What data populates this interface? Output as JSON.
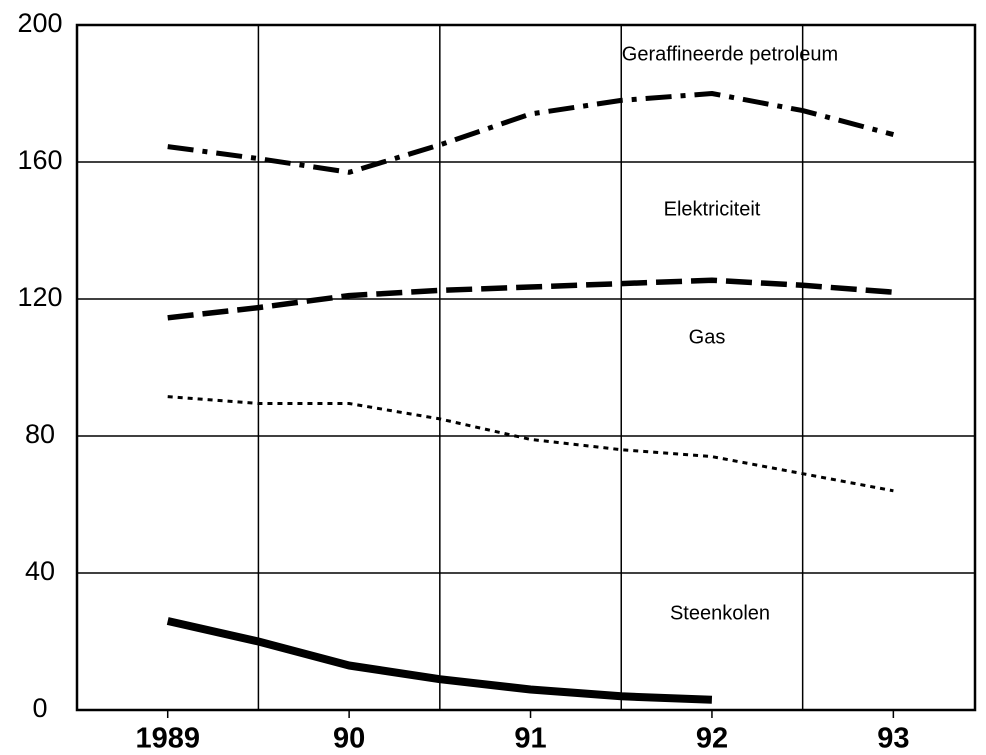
{
  "chart_data": {
    "type": "line",
    "x": [
      1989,
      1989.5,
      1990,
      1990.5,
      1991,
      1991.5,
      1992,
      1992.5,
      1993
    ],
    "xlim": [
      1988.5,
      1993.45
    ],
    "xticks": [
      {
        "value": 1989,
        "label": "1989"
      },
      {
        "value": 1990,
        "label": "90"
      },
      {
        "value": 1991,
        "label": "91"
      },
      {
        "value": 1992,
        "label": "92"
      },
      {
        "value": 1993,
        "label": "93"
      }
    ],
    "xgrid": [
      1989.5,
      1990.5,
      1991.5,
      1992.5
    ],
    "ylim": [
      0,
      200
    ],
    "yticks": [
      0,
      40,
      80,
      120,
      160,
      200
    ],
    "grid": true,
    "series": [
      {
        "name": "Geraffineerde petroleum",
        "color": "#000000",
        "style": "dashdot",
        "values": [
          164.5,
          161,
          157,
          165,
          174,
          178,
          180,
          175,
          168
        ]
      },
      {
        "name": "Elektriciteit",
        "color": "#000000",
        "style": "dashed",
        "values": [
          114.5,
          117.5,
          121,
          122.5,
          123.5,
          124.5,
          125.5,
          124,
          122
        ]
      },
      {
        "name": "Gas",
        "color": "#000000",
        "style": "dotted",
        "values": [
          91.5,
          89.5,
          89.5,
          85,
          79,
          76,
          74,
          69,
          64
        ]
      },
      {
        "name": "Steenkolen",
        "color": "#000000",
        "style": "solid",
        "values": [
          26,
          20,
          13,
          9,
          6,
          4,
          3,
          null,
          null
        ]
      }
    ]
  }
}
